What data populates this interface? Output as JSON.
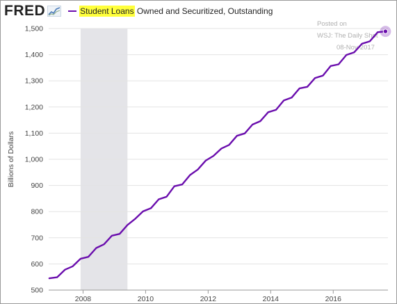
{
  "header": {
    "logo_text": "FRED",
    "logo_icon": "trend-line-icon",
    "series_highlight": "Student Loans",
    "series_rest": " Owned and Securitized, Outstanding"
  },
  "annotation": {
    "line1": "Posted on",
    "line2": "WSJ: The Daily Shot",
    "line3": "08-Nov-2017"
  },
  "colors": {
    "series": "#6a0dad",
    "recession": "#e4e4e8",
    "grid": "#e3e3e3",
    "highlight": "#ffff3b"
  },
  "chart_data": {
    "type": "line",
    "title": "Student Loans Owned and Securitized, Outstanding",
    "xlabel": "",
    "ylabel": "Billions of Dollars",
    "ylim": [
      500,
      1500
    ],
    "xlim": [
      2006.9,
      2017.75
    ],
    "yticks": [
      500,
      600,
      700,
      800,
      900,
      1000,
      1100,
      1200,
      1300,
      1400,
      1500
    ],
    "ytick_labels": [
      "500",
      "600",
      "700",
      "800",
      "900",
      "1,000",
      "1,100",
      "1,200",
      "1,300",
      "1,400",
      "1,500"
    ],
    "xticks": [
      2008,
      2010,
      2012,
      2014,
      2016
    ],
    "xtick_labels": [
      "2008",
      "2010",
      "2012",
      "2014",
      "2016"
    ],
    "grid": "horizontal",
    "shaded_periods": [
      {
        "start": 2007.92,
        "end": 2009.42,
        "label": "recession"
      }
    ],
    "series": [
      {
        "name": "Student Loans",
        "x": [
          2006.92,
          2007.17,
          2007.42,
          2007.67,
          2007.92,
          2008.17,
          2008.42,
          2008.67,
          2008.92,
          2009.17,
          2009.42,
          2009.67,
          2009.92,
          2010.17,
          2010.42,
          2010.67,
          2010.92,
          2011.17,
          2011.42,
          2011.67,
          2011.92,
          2012.17,
          2012.42,
          2012.67,
          2012.92,
          2013.17,
          2013.42,
          2013.67,
          2013.92,
          2014.17,
          2014.42,
          2014.67,
          2014.92,
          2015.17,
          2015.42,
          2015.67,
          2015.92,
          2016.17,
          2016.42,
          2016.67,
          2016.92,
          2017.17,
          2017.42,
          2017.67
        ],
        "y": [
          545,
          549,
          578,
          591,
          620,
          627,
          661,
          675,
          708,
          715,
          749,
          773,
          801,
          813,
          847,
          857,
          897,
          904,
          940,
          961,
          995,
          1013,
          1041,
          1055,
          1090,
          1099,
          1133,
          1146,
          1180,
          1189,
          1225,
          1236,
          1271,
          1277,
          1311,
          1320,
          1357,
          1363,
          1399,
          1409,
          1442,
          1451,
          1486,
          1489
        ]
      }
    ]
  }
}
